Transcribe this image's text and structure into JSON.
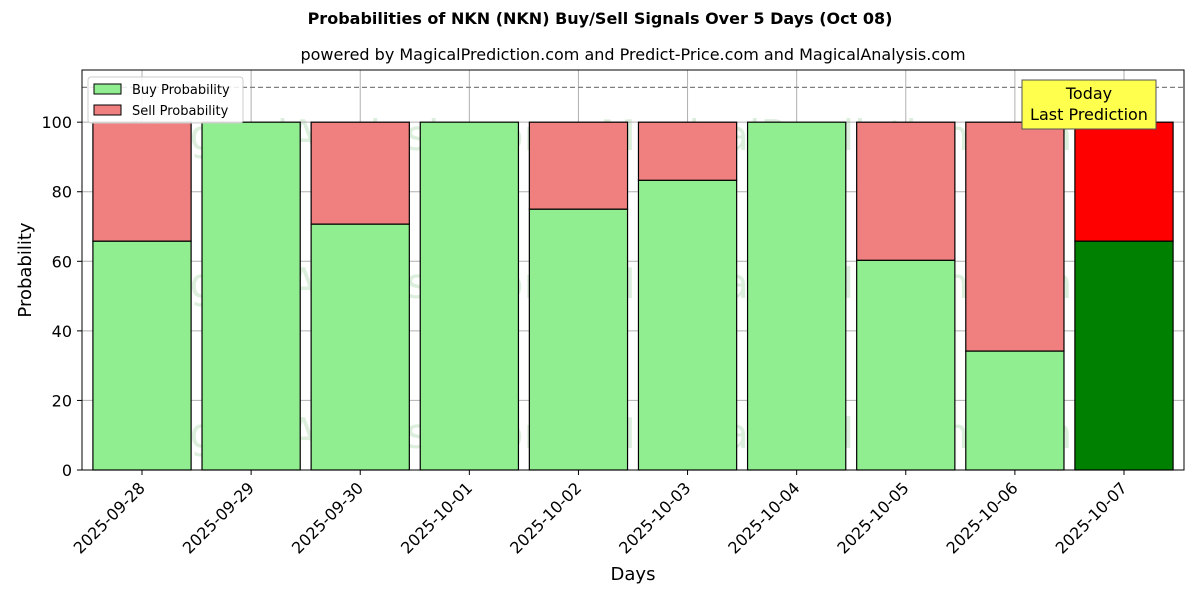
{
  "chart_data": {
    "type": "bar",
    "stacked": true,
    "title": "Probabilities of NKN (NKN) Buy/Sell Signals Over 5 Days (Oct 08)",
    "subtitle": "powered by MagicalPrediction.com and Predict-Price.com and MagicalAnalysis.com",
    "xlabel": "Days",
    "ylabel": "Probability",
    "ylim": [
      0,
      115
    ],
    "yticks": [
      0,
      20,
      40,
      60,
      80,
      100
    ],
    "grid": true,
    "legend_position": "top-left",
    "reference_line": 110,
    "categories": [
      "2025-09-28",
      "2025-09-29",
      "2025-09-30",
      "2025-10-01",
      "2025-10-02",
      "2025-10-03",
      "2025-10-04",
      "2025-10-05",
      "2025-10-06",
      "2025-10-07"
    ],
    "series": [
      {
        "name": "Buy Probability",
        "color": "#90ee90",
        "values": [
          65.8,
          100,
          70.7,
          100,
          75.0,
          83.3,
          100,
          60.3,
          34.2,
          65.8
        ]
      },
      {
        "name": "Sell Probability",
        "color": "#f08080",
        "values": [
          34.2,
          0,
          29.3,
          0,
          25.0,
          16.7,
          0,
          39.7,
          65.8,
          34.2
        ]
      }
    ],
    "highlight": {
      "index": 9,
      "buy_color": "#008000",
      "sell_color": "#ff0000"
    },
    "annotation": {
      "lines": [
        "Today",
        "Last Prediction"
      ],
      "background": "#ffff4d"
    },
    "watermarks": [
      "MagicalAnalysis.com",
      "MagicalPrediction.com"
    ]
  }
}
